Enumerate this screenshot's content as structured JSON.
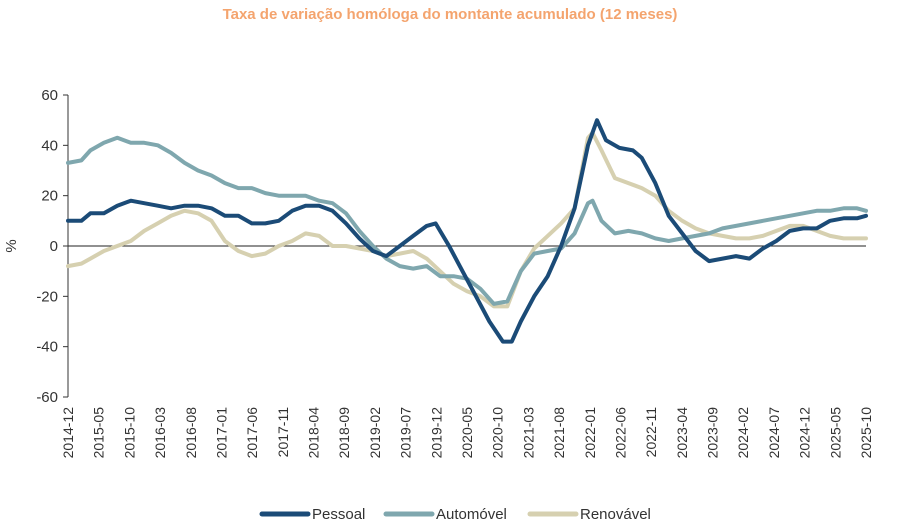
{
  "chart_data": {
    "type": "line",
    "title": "Taxa de variação homóloga do montante acumulado (12 meses)",
    "title_color": "#F4A46E",
    "ylabel": "%",
    "xlabel": "",
    "ylim": [
      -60,
      60
    ],
    "yticks": [
      -60,
      -40,
      -20,
      0,
      20,
      40,
      60
    ],
    "ytick_labels": [
      "-60",
      "-40",
      "-20",
      "0",
      "20",
      "40",
      "60"
    ],
    "xtick_labels": [
      "2014-12",
      "2015-05",
      "2015-10",
      "2016-03",
      "2016-08",
      "2017-01",
      "2017-06",
      "2017-11",
      "2018-04",
      "2018-09",
      "2019-02",
      "2019-07",
      "2019-12",
      "2020-05",
      "2020-10",
      "2021-03",
      "2021-08",
      "2022-01",
      "2022-06",
      "2022-11",
      "2023-04",
      "2023-09",
      "2024-02",
      "2024-07",
      "2024-12",
      "2025-05",
      "2025-10"
    ],
    "legend_position": "bottom-center",
    "series": [
      {
        "name": "Pessoal",
        "color": "#1B4B77",
        "values": [
          [
            0,
            10
          ],
          [
            3,
            10
          ],
          [
            5,
            13
          ],
          [
            8,
            13
          ],
          [
            11,
            16
          ],
          [
            14,
            18
          ],
          [
            17,
            17
          ],
          [
            20,
            16
          ],
          [
            23,
            15
          ],
          [
            26,
            16
          ],
          [
            29,
            16
          ],
          [
            32,
            15
          ],
          [
            35,
            12
          ],
          [
            38,
            12
          ],
          [
            41,
            9
          ],
          [
            44,
            9
          ],
          [
            47,
            10
          ],
          [
            50,
            14
          ],
          [
            53,
            16
          ],
          [
            56,
            16
          ],
          [
            59,
            14
          ],
          [
            62,
            9
          ],
          [
            65,
            3
          ],
          [
            68,
            -2
          ],
          [
            71,
            -4
          ],
          [
            74,
            0
          ],
          [
            77,
            4
          ],
          [
            80,
            8
          ],
          [
            82,
            9
          ],
          [
            85,
            0
          ],
          [
            88,
            -10
          ],
          [
            91,
            -20
          ],
          [
            94,
            -30
          ],
          [
            97,
            -38
          ],
          [
            99,
            -38
          ],
          [
            101,
            -30
          ],
          [
            104,
            -20
          ],
          [
            107,
            -12
          ],
          [
            110,
            0
          ],
          [
            113,
            15
          ],
          [
            116,
            40
          ],
          [
            118,
            50
          ],
          [
            120,
            42
          ],
          [
            123,
            39
          ],
          [
            126,
            38
          ],
          [
            128,
            35
          ],
          [
            131,
            25
          ],
          [
            134,
            12
          ],
          [
            137,
            5
          ],
          [
            140,
            -2
          ],
          [
            143,
            -6
          ],
          [
            146,
            -5
          ],
          [
            149,
            -4
          ],
          [
            152,
            -5
          ],
          [
            155,
            -1
          ],
          [
            158,
            2
          ],
          [
            161,
            6
          ],
          [
            164,
            7
          ],
          [
            167,
            7
          ],
          [
            170,
            10
          ],
          [
            173,
            11
          ],
          [
            176,
            11
          ],
          [
            178,
            12
          ]
        ]
      },
      {
        "name": "Automóvel",
        "color": "#7FA7AE",
        "values": [
          [
            0,
            33
          ],
          [
            3,
            34
          ],
          [
            5,
            38
          ],
          [
            8,
            41
          ],
          [
            11,
            43
          ],
          [
            14,
            41
          ],
          [
            17,
            41
          ],
          [
            20,
            40
          ],
          [
            23,
            37
          ],
          [
            26,
            33
          ],
          [
            29,
            30
          ],
          [
            32,
            28
          ],
          [
            35,
            25
          ],
          [
            38,
            23
          ],
          [
            41,
            23
          ],
          [
            44,
            21
          ],
          [
            47,
            20
          ],
          [
            50,
            20
          ],
          [
            53,
            20
          ],
          [
            56,
            18
          ],
          [
            59,
            17
          ],
          [
            62,
            13
          ],
          [
            65,
            6
          ],
          [
            68,
            0
          ],
          [
            71,
            -5
          ],
          [
            74,
            -8
          ],
          [
            77,
            -9
          ],
          [
            80,
            -8
          ],
          [
            83,
            -12
          ],
          [
            86,
            -12
          ],
          [
            89,
            -13
          ],
          [
            92,
            -17
          ],
          [
            95,
            -23
          ],
          [
            98,
            -22
          ],
          [
            101,
            -10
          ],
          [
            104,
            -3
          ],
          [
            107,
            -2
          ],
          [
            110,
            -1
          ],
          [
            113,
            5
          ],
          [
            116,
            17
          ],
          [
            117,
            18
          ],
          [
            119,
            10
          ],
          [
            122,
            5
          ],
          [
            125,
            6
          ],
          [
            128,
            5
          ],
          [
            131,
            3
          ],
          [
            134,
            2
          ],
          [
            137,
            3
          ],
          [
            140,
            4
          ],
          [
            143,
            5
          ],
          [
            146,
            7
          ],
          [
            149,
            8
          ],
          [
            152,
            9
          ],
          [
            155,
            10
          ],
          [
            158,
            11
          ],
          [
            161,
            12
          ],
          [
            164,
            13
          ],
          [
            167,
            14
          ],
          [
            170,
            14
          ],
          [
            173,
            15
          ],
          [
            176,
            15
          ],
          [
            178,
            14
          ]
        ]
      },
      {
        "name": "Renovável",
        "color": "#D6D0B0",
        "values": [
          [
            0,
            -8
          ],
          [
            3,
            -7
          ],
          [
            5,
            -5
          ],
          [
            8,
            -2
          ],
          [
            11,
            0
          ],
          [
            14,
            2
          ],
          [
            17,
            6
          ],
          [
            20,
            9
          ],
          [
            23,
            12
          ],
          [
            26,
            14
          ],
          [
            29,
            13
          ],
          [
            32,
            10
          ],
          [
            35,
            2
          ],
          [
            38,
            -2
          ],
          [
            41,
            -4
          ],
          [
            44,
            -3
          ],
          [
            47,
            0
          ],
          [
            50,
            2
          ],
          [
            53,
            5
          ],
          [
            56,
            4
          ],
          [
            59,
            0
          ],
          [
            62,
            0
          ],
          [
            65,
            -1
          ],
          [
            68,
            -2
          ],
          [
            71,
            -4
          ],
          [
            74,
            -3
          ],
          [
            77,
            -2
          ],
          [
            80,
            -5
          ],
          [
            83,
            -10
          ],
          [
            86,
            -15
          ],
          [
            89,
            -18
          ],
          [
            92,
            -20
          ],
          [
            95,
            -24
          ],
          [
            98,
            -24
          ],
          [
            101,
            -10
          ],
          [
            104,
            -1
          ],
          [
            107,
            4
          ],
          [
            110,
            9
          ],
          [
            113,
            15
          ],
          [
            116,
            43
          ],
          [
            117,
            45
          ],
          [
            119,
            38
          ],
          [
            122,
            27
          ],
          [
            125,
            25
          ],
          [
            128,
            23
          ],
          [
            131,
            20
          ],
          [
            134,
            14
          ],
          [
            137,
            10
          ],
          [
            140,
            7
          ],
          [
            143,
            5
          ],
          [
            146,
            4
          ],
          [
            149,
            3
          ],
          [
            152,
            3
          ],
          [
            155,
            4
          ],
          [
            158,
            6
          ],
          [
            161,
            8
          ],
          [
            164,
            8
          ],
          [
            167,
            6
          ],
          [
            170,
            4
          ],
          [
            173,
            3
          ],
          [
            176,
            3
          ],
          [
            178,
            3
          ]
        ]
      }
    ]
  }
}
